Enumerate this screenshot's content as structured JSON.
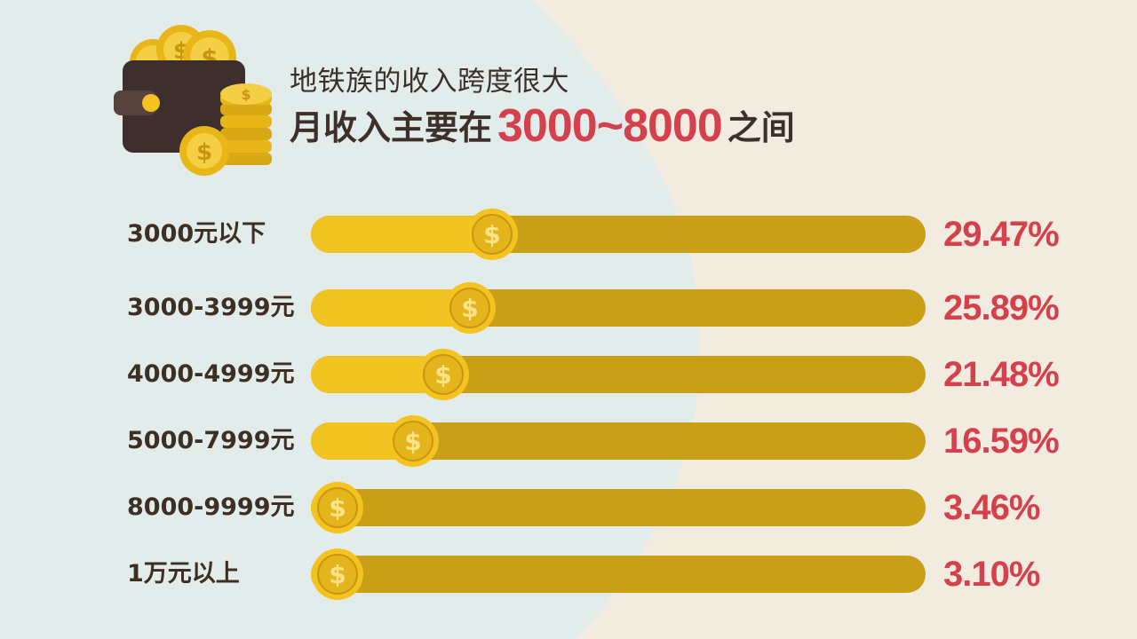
{
  "header": {
    "title_line1": "地铁族的收入跨度很大",
    "title_line2_prefix": "月收入主要在",
    "title_line2_highlight": "3000~8000",
    "title_line2_suffix": "之间"
  },
  "colors": {
    "accent_red": "#d5404d",
    "bar_fill": "#f0c320",
    "bar_track": "#c99f17",
    "text_dark": "#3d2f24"
  },
  "chart_data": {
    "type": "bar",
    "orientation": "horizontal",
    "categories": [
      "3000元以下",
      "3000-3999元",
      "4000-4999元",
      "5000-7999元",
      "8000-9999元",
      "1万元以上"
    ],
    "values": [
      29.47,
      25.89,
      21.48,
      16.59,
      3.46,
      3.1
    ],
    "value_labels": [
      "29.47%",
      "25.89%",
      "21.48%",
      "16.59%",
      "3.46%",
      "3.10%"
    ],
    "unit": "%",
    "xlim": [
      0,
      100
    ],
    "title": "月收入主要在3000~8000之间",
    "xlabel": "",
    "ylabel": ""
  }
}
